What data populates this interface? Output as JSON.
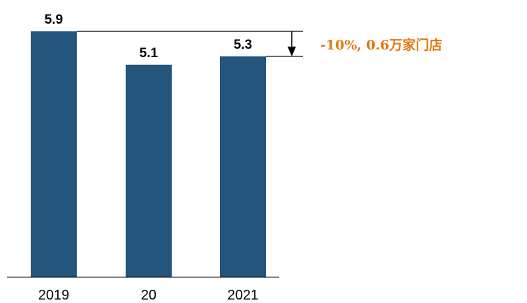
{
  "chart_data": {
    "type": "bar",
    "categories": [
      "2019",
      "20",
      "2021"
    ],
    "values": [
      5.9,
      5.1,
      5.3
    ],
    "value_labels": [
      "5.9",
      "5.1",
      "5.3"
    ],
    "title": "",
    "xlabel": "",
    "ylabel": "",
    "ylim": [
      0,
      5.9
    ],
    "grid": false,
    "annotation": {
      "text": "-10%, 0.6万家门店",
      "from_category": "2019",
      "to_category": "2021"
    }
  },
  "colors": {
    "bar": "#23557D",
    "annotation": "#E07A10",
    "axis": "#000000"
  }
}
